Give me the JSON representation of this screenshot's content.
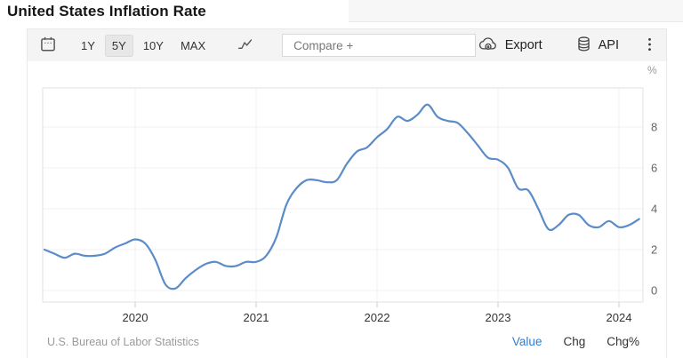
{
  "page": {
    "title": "United States Inflation Rate"
  },
  "toolbar": {
    "calendar_icon": "calendar-icon",
    "ranges": [
      {
        "label": "1Y",
        "active": false
      },
      {
        "label": "5Y",
        "active": true
      },
      {
        "label": "10Y",
        "active": false
      },
      {
        "label": "MAX",
        "active": false
      }
    ],
    "chart_type_icon": "line-chart-icon",
    "compare_placeholder": "Compare +",
    "export_label": "Export",
    "api_label": "API"
  },
  "chart_data": {
    "type": "line",
    "title": "United States Inflation Rate",
    "unit": "%",
    "line_color": "#5b8cc8",
    "grid": true,
    "ylim": [
      -0.5,
      10
    ],
    "y_axis_ticks": [
      0,
      2,
      4,
      6,
      8
    ],
    "x_axis_ticks": [
      "2020",
      "2021",
      "2022",
      "2023",
      "2024"
    ],
    "x": [
      "2019-04",
      "2019-05",
      "2019-06",
      "2019-07",
      "2019-08",
      "2019-09",
      "2019-10",
      "2019-11",
      "2019-12",
      "2020-01",
      "2020-02",
      "2020-03",
      "2020-04",
      "2020-05",
      "2020-06",
      "2020-07",
      "2020-08",
      "2020-09",
      "2020-10",
      "2020-11",
      "2020-12",
      "2021-01",
      "2021-02",
      "2021-03",
      "2021-04",
      "2021-05",
      "2021-06",
      "2021-07",
      "2021-08",
      "2021-09",
      "2021-10",
      "2021-11",
      "2021-12",
      "2022-01",
      "2022-02",
      "2022-03",
      "2022-04",
      "2022-05",
      "2022-06",
      "2022-07",
      "2022-08",
      "2022-09",
      "2022-10",
      "2022-11",
      "2022-12",
      "2023-01",
      "2023-02",
      "2023-03",
      "2023-04",
      "2023-05",
      "2023-06",
      "2023-07",
      "2023-08",
      "2023-09",
      "2023-10",
      "2023-11",
      "2023-12",
      "2024-01",
      "2024-02",
      "2024-03"
    ],
    "values": [
      2.0,
      1.8,
      1.6,
      1.8,
      1.7,
      1.7,
      1.8,
      2.1,
      2.3,
      2.5,
      2.3,
      1.5,
      0.3,
      0.1,
      0.6,
      1.0,
      1.3,
      1.4,
      1.2,
      1.2,
      1.4,
      1.4,
      1.7,
      2.6,
      4.2,
      5.0,
      5.4,
      5.4,
      5.3,
      5.4,
      6.2,
      6.8,
      7.0,
      7.5,
      7.9,
      8.5,
      8.3,
      8.6,
      9.1,
      8.5,
      8.3,
      8.2,
      7.7,
      7.1,
      6.5,
      6.4,
      6.0,
      5.0,
      4.9,
      4.0,
      3.0,
      3.2,
      3.7,
      3.7,
      3.2,
      3.1,
      3.4,
      3.1,
      3.2,
      3.5
    ],
    "source": "U.S. Bureau of Labor Statistics"
  },
  "footer": {
    "source": "U.S. Bureau of Labor Statistics",
    "value_label": "Value",
    "chg_label": "Chg",
    "chgpct_label": "Chg%"
  }
}
